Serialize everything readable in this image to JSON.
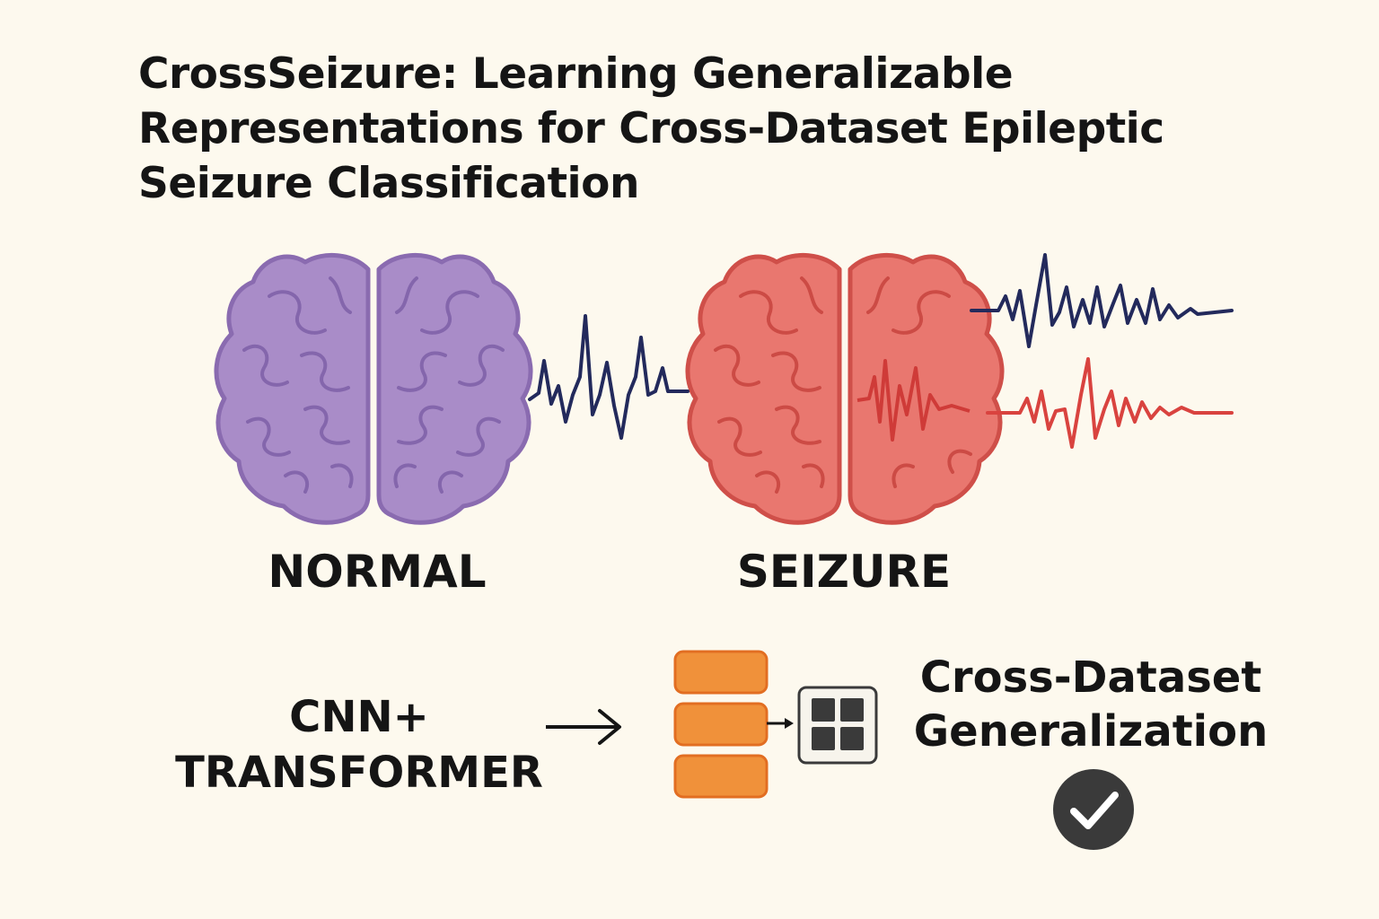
{
  "title_lines": [
    "CrossSeizure: Learning Generalizable",
    "Representations for Cross-Dataset Epileptic",
    "Seizure Classification"
  ],
  "brains": {
    "normal": {
      "label": "NORMAL",
      "fill": "#a98cc8",
      "stroke": "#8a6bb0"
    },
    "seizure": {
      "label": "SEIZURE",
      "fill": "#e9776f",
      "stroke": "#cf4f49"
    }
  },
  "model": {
    "label_lines": [
      "CNN+",
      "TRANSFORMER"
    ]
  },
  "result": {
    "label_lines": [
      "Cross-Dataset",
      "Generalization"
    ]
  },
  "colors": {
    "background": "#fdf9ee",
    "wave_dark": "#232a5c",
    "wave_red": "#d9433f",
    "block": "#f0913a",
    "block_stroke": "#e26e22",
    "check_circle": "#3a3a3a"
  },
  "icons": [
    "brain-icon",
    "eeg-wave-icon",
    "arrow-icon",
    "layer-stack-icon",
    "grid-icon",
    "check-circle-icon"
  ]
}
